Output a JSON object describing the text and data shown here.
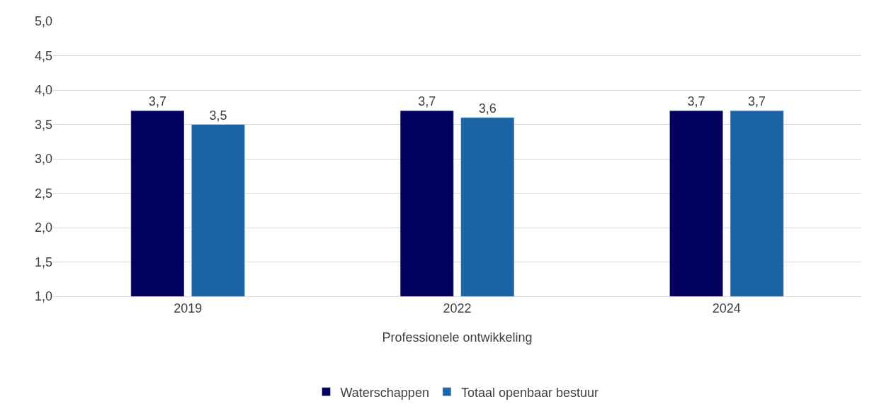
{
  "chart_data": {
    "type": "bar",
    "xlabel": "Professionele ontwikkeling",
    "categories": [
      "2019",
      "2022",
      "2024"
    ],
    "series": [
      {
        "name": "Waterschappen",
        "color": "#02025e",
        "values": [
          3.7,
          3.7,
          3.7
        ],
        "value_labels": [
          "3,7",
          "3,7",
          "3,7"
        ]
      },
      {
        "name": "Totaal openbaar bestuur",
        "color": "#1b64a6",
        "values": [
          3.5,
          3.6,
          3.7
        ],
        "value_labels": [
          "3,5",
          "3,6",
          "3,7"
        ]
      }
    ],
    "ylim": [
      1,
      5
    ],
    "yticks": [
      {
        "value": 1,
        "label": "1,0"
      },
      {
        "value": 1.5,
        "label": "1,5"
      },
      {
        "value": 2,
        "label": "2,0"
      },
      {
        "value": 2.5,
        "label": "2,5"
      },
      {
        "value": 3,
        "label": "3,0"
      },
      {
        "value": 3.5,
        "label": "3,5"
      },
      {
        "value": 4,
        "label": "4,0"
      },
      {
        "value": 4.5,
        "label": "4,5"
      },
      {
        "value": 5,
        "label": "5,0"
      }
    ],
    "grid": "y",
    "legend": "bottom"
  }
}
